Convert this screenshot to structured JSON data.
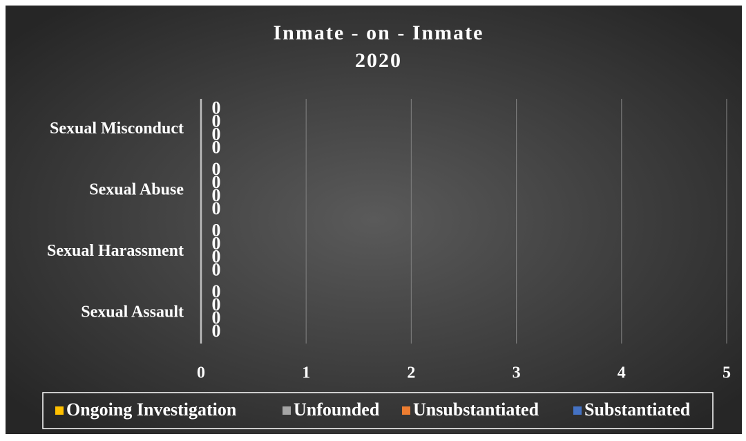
{
  "chart_data": {
    "type": "bar",
    "orientation": "horizontal",
    "title": "Inmate - on - Inmate",
    "subtitle": "2020",
    "categories": [
      "Sexual Misconduct",
      "Sexual Abuse",
      "Sexual Harassment",
      "Sexual Assault"
    ],
    "series": [
      {
        "name": "Ongoing Investigation",
        "color": "#ffc000",
        "values": [
          0,
          0,
          0,
          0
        ]
      },
      {
        "name": "Unfounded",
        "color": "#a5a5a5",
        "values": [
          0,
          0,
          0,
          0
        ]
      },
      {
        "name": "Unsubstantiated",
        "color": "#ed7d31",
        "values": [
          0,
          0,
          0,
          0
        ]
      },
      {
        "name": "Substantiated",
        "color": "#4472c4",
        "values": [
          0,
          0,
          0,
          0
        ]
      }
    ],
    "xlim": [
      0,
      5
    ],
    "xticks": [
      0,
      1,
      2,
      3,
      4,
      5
    ],
    "grid": true,
    "legend": "bottom"
  }
}
